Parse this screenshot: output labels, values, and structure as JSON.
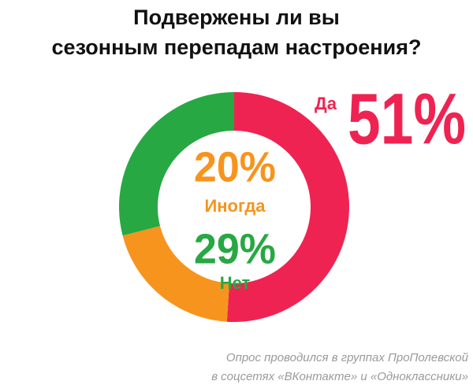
{
  "chart_data": {
    "type": "donut",
    "title": [
      "Подвержены ли вы",
      "сезонным перепадам настроения?"
    ],
    "categories": [
      "Да",
      "Иногда",
      "Нет"
    ],
    "values": [
      51,
      20,
      29
    ],
    "value_labels": [
      "51%",
      "20%",
      "29%"
    ],
    "colors": [
      "#ef2351",
      "#f7941d",
      "#27a843"
    ],
    "annotations": [
      "Опрос проводился в группах ПроПолевской",
      "в соцсетях «ВКонтакте» и «Одноклассники»"
    ]
  }
}
